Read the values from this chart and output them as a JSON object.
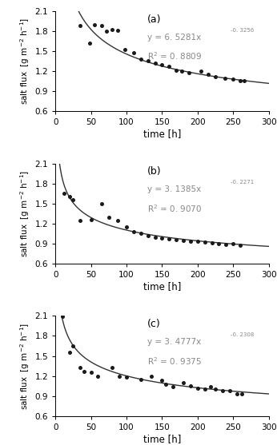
{
  "panels": [
    {
      "label": "(a)",
      "a": 6.5281,
      "b": -0.3256,
      "eq_main": "y = 6. 5281x",
      "eq_exp": "-0. 3256",
      "r2_text": "R",
      "r2_exp": "2",
      "r2_val": " = 0. 8809",
      "scatter_x": [
        35,
        48,
        55,
        65,
        72,
        80,
        88,
        98,
        110,
        120,
        130,
        140,
        150,
        160,
        170,
        178,
        188,
        205,
        215,
        225,
        238,
        250,
        260,
        265
      ],
      "scatter_y": [
        1.88,
        1.62,
        1.9,
        1.88,
        1.8,
        1.82,
        1.81,
        1.52,
        1.48,
        1.38,
        1.36,
        1.32,
        1.3,
        1.27,
        1.22,
        1.2,
        1.18,
        1.2,
        1.15,
        1.12,
        1.1,
        1.08,
        1.06,
        1.06
      ]
    },
    {
      "label": "(b)",
      "a": 3.1385,
      "b": -0.2271,
      "eq_main": "y = 3. 1385x",
      "eq_exp": "-0. 2271",
      "r2_text": "R",
      "r2_exp": "2",
      "r2_val": " = 0. 9070",
      "scatter_x": [
        12,
        20,
        25,
        35,
        50,
        65,
        75,
        88,
        100,
        110,
        120,
        130,
        140,
        150,
        160,
        170,
        180,
        190,
        200,
        210,
        220,
        230,
        240,
        250,
        260
      ],
      "scatter_y": [
        1.65,
        1.6,
        1.56,
        1.25,
        1.26,
        1.5,
        1.3,
        1.25,
        1.15,
        1.08,
        1.05,
        1.02,
        1.0,
        0.98,
        0.97,
        0.96,
        0.95,
        0.94,
        0.93,
        0.92,
        0.91,
        0.9,
        0.89,
        0.9,
        0.88
      ]
    },
    {
      "label": "(c)",
      "a": 3.4777,
      "b": -0.2308,
      "eq_main": "y = 3. 4777x",
      "eq_exp": "-0. 2308",
      "r2_text": "R",
      "r2_exp": "2",
      "r2_val": " = 0. 9375",
      "scatter_x": [
        10,
        20,
        25,
        35,
        40,
        50,
        60,
        80,
        90,
        100,
        120,
        135,
        150,
        155,
        165,
        180,
        190,
        200,
        210,
        218,
        225,
        235,
        245,
        255,
        262
      ],
      "scatter_y": [
        2.09,
        1.55,
        1.65,
        1.33,
        1.27,
        1.25,
        1.2,
        1.33,
        1.2,
        1.18,
        1.15,
        1.2,
        1.13,
        1.08,
        1.04,
        1.1,
        1.05,
        1.02,
        1.0,
        1.04,
        1.0,
        0.98,
        0.98,
        0.93,
        0.93
      ]
    }
  ],
  "xlim": [
    0,
    300
  ],
  "xticks": [
    0,
    50,
    100,
    150,
    200,
    250,
    300
  ],
  "ylim": [
    0.6,
    2.1
  ],
  "yticks": [
    0.6,
    0.9,
    1.2,
    1.5,
    1.8,
    2.1
  ],
  "xlabel": "time [h]",
  "ylabel_top": "salt flux  [g m",
  "ylabel_sup": "-2",
  "ylabel_mid": " h",
  "ylabel_sup2": "-1",
  "ylabel_end": "]",
  "scatter_color": "#1a1a1a",
  "line_color": "#333333",
  "text_color": "#000000",
  "ann_color": "#888888"
}
